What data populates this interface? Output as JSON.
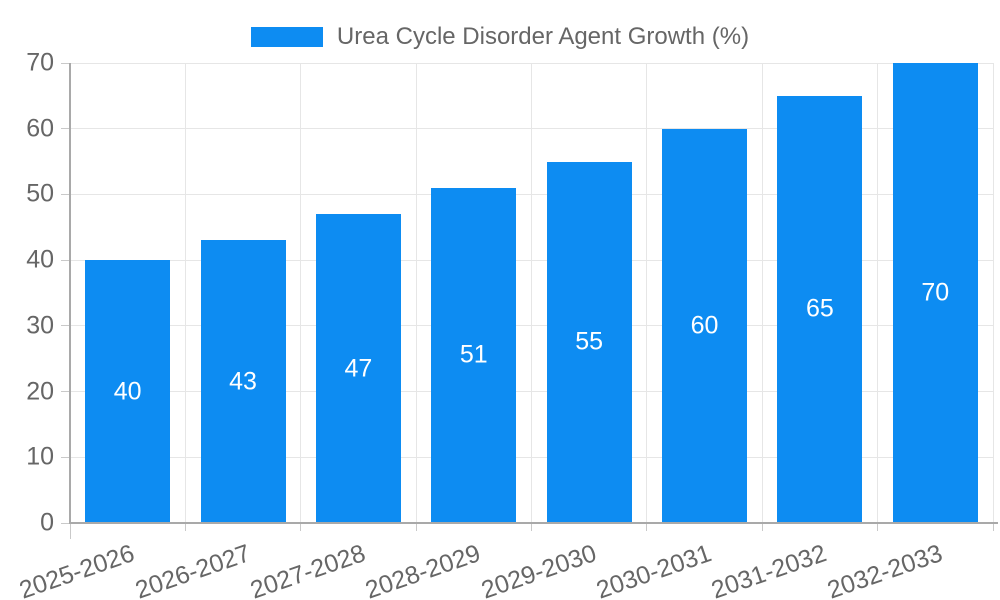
{
  "legend": {
    "position": "top"
  },
  "chart_data": {
    "type": "bar",
    "title": "",
    "xlabel": "",
    "ylabel": "",
    "series_name": "Urea Cycle Disorder Agent Growth (%)",
    "categories": [
      "2025-2026",
      "2026-2027",
      "2027-2028",
      "2028-2029",
      "2029-2030",
      "2030-2031",
      "2031-2032",
      "2032-2033"
    ],
    "values": [
      40,
      43,
      47,
      51,
      55,
      60,
      65,
      70
    ],
    "y_ticks": [
      0,
      10,
      20,
      30,
      40,
      50,
      60,
      70
    ],
    "ylim": [
      0,
      70
    ],
    "grid": "both",
    "legend_position": "top",
    "colors": {
      "bar": "#0d8cf2",
      "bar_label": "#ffffff",
      "axis_text": "#666666",
      "gridline": "#e6e6e6",
      "tick": "#c9c9c9",
      "axis_line": "#a9a9a9",
      "background": "#ffffff"
    }
  }
}
